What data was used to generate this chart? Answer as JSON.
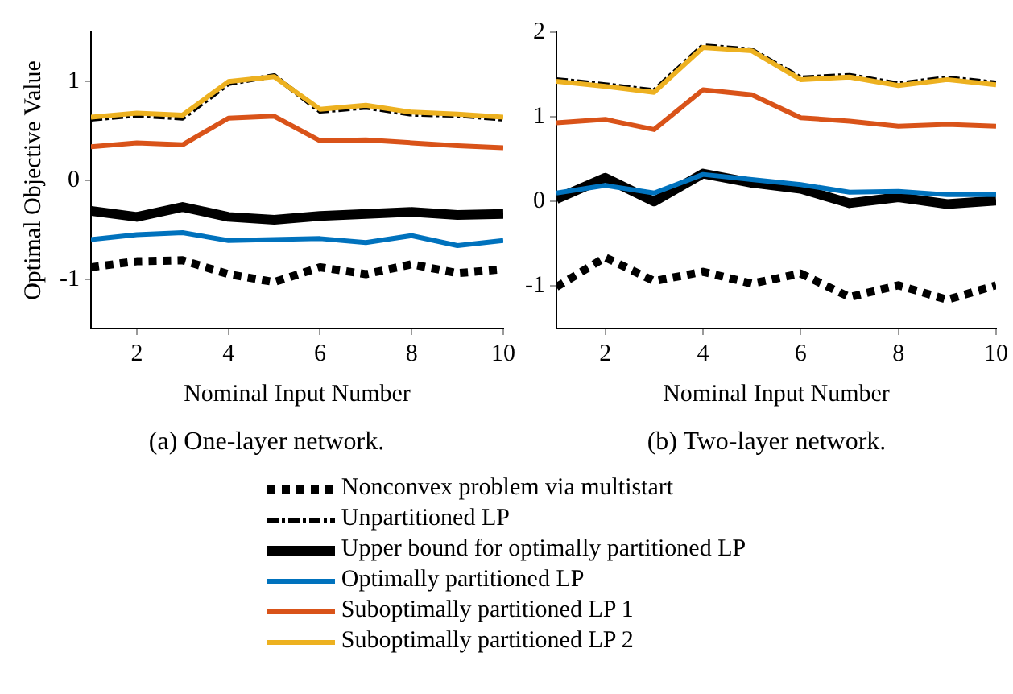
{
  "chart_data": [
    {
      "type": "line",
      "title": "(a) One-layer network.",
      "xlabel": "Nominal Input Number",
      "ylabel": "Optimal Objective Value",
      "x": [
        1,
        2,
        3,
        4,
        5,
        6,
        7,
        8,
        9,
        10
      ],
      "xlim": [
        1,
        10
      ],
      "xticks": [
        2,
        4,
        6,
        8,
        10
      ],
      "ylim": [
        -1.5,
        1.5
      ],
      "yticks": [
        -1,
        0,
        1
      ],
      "grid": false,
      "legend": "bottom",
      "marker": "none",
      "series": [
        {
          "name": "Nonconvex problem via multistart",
          "color": "#000000",
          "line_style": "dotted",
          "values": [
            -0.88,
            -0.82,
            -0.81,
            -0.95,
            -1.03,
            -0.88,
            -0.95,
            -0.85,
            -0.94,
            -0.9
          ]
        },
        {
          "name": "Unpartitioned LP",
          "color": "#000000",
          "line_style": "dashed",
          "values": [
            0.62,
            0.66,
            0.63,
            0.98,
            1.06,
            0.7,
            0.74,
            0.67,
            0.66,
            0.62
          ]
        },
        {
          "name": "Upper bound for optimally partitioned LP",
          "color": "#000000",
          "line_style": "solid",
          "values": [
            -0.31,
            -0.37,
            -0.27,
            -0.37,
            -0.4,
            -0.36,
            -0.34,
            -0.32,
            -0.35,
            -0.34
          ]
        },
        {
          "name": "Optimally partitioned LP",
          "color": "#0072bd",
          "line_style": "solid",
          "values": [
            -0.6,
            -0.55,
            -0.53,
            -0.61,
            -0.6,
            -0.59,
            -0.63,
            -0.56,
            -0.66,
            -0.61
          ]
        },
        {
          "name": "Suboptimally partitioned LP 1",
          "color": "#d95319",
          "line_style": "solid",
          "values": [
            0.34,
            0.38,
            0.36,
            0.63,
            0.65,
            0.4,
            0.41,
            0.38,
            0.35,
            0.33
          ]
        },
        {
          "name": "Suboptimally partitioned LP 2",
          "color": "#edb120",
          "line_style": "solid",
          "values": [
            0.64,
            0.68,
            0.66,
            1.0,
            1.05,
            0.72,
            0.76,
            0.69,
            0.67,
            0.64
          ]
        }
      ]
    },
    {
      "type": "line",
      "title": "(b) Two-layer network.",
      "xlabel": "Nominal Input Number",
      "x": [
        1,
        2,
        3,
        4,
        5,
        6,
        7,
        8,
        9,
        10
      ],
      "xlim": [
        1,
        10
      ],
      "xticks": [
        2,
        4,
        6,
        8,
        10
      ],
      "ylim": [
        -1.5,
        2
      ],
      "yticks": [
        -1,
        0,
        1,
        2
      ],
      "grid": false,
      "marker": "none",
      "series": [
        {
          "color": "#000000",
          "line_style": "dotted",
          "values": [
            -1.01,
            -0.66,
            -0.94,
            -0.83,
            -0.97,
            -0.85,
            -1.13,
            -0.99,
            -1.16,
            -0.99
          ]
        },
        {
          "color": "#000000",
          "line_style": "dashed",
          "values": [
            1.44,
            1.38,
            1.31,
            1.84,
            1.79,
            1.46,
            1.49,
            1.39,
            1.46,
            1.4
          ]
        },
        {
          "color": "#000000",
          "line_style": "solid",
          "values": [
            0.03,
            0.28,
            0.0,
            0.33,
            0.22,
            0.15,
            -0.02,
            0.05,
            -0.03,
            0.01
          ]
        },
        {
          "color": "#0072bd",
          "line_style": "solid",
          "values": [
            0.1,
            0.19,
            0.1,
            0.32,
            0.26,
            0.2,
            0.11,
            0.12,
            0.08,
            0.08
          ]
        },
        {
          "color": "#d95319",
          "line_style": "solid",
          "values": [
            0.93,
            0.97,
            0.85,
            1.32,
            1.26,
            0.99,
            0.95,
            0.89,
            0.91,
            0.89
          ]
        },
        {
          "color": "#edb120",
          "line_style": "solid",
          "values": [
            1.42,
            1.36,
            1.29,
            1.82,
            1.78,
            1.44,
            1.47,
            1.37,
            1.44,
            1.38
          ]
        }
      ]
    }
  ]
}
